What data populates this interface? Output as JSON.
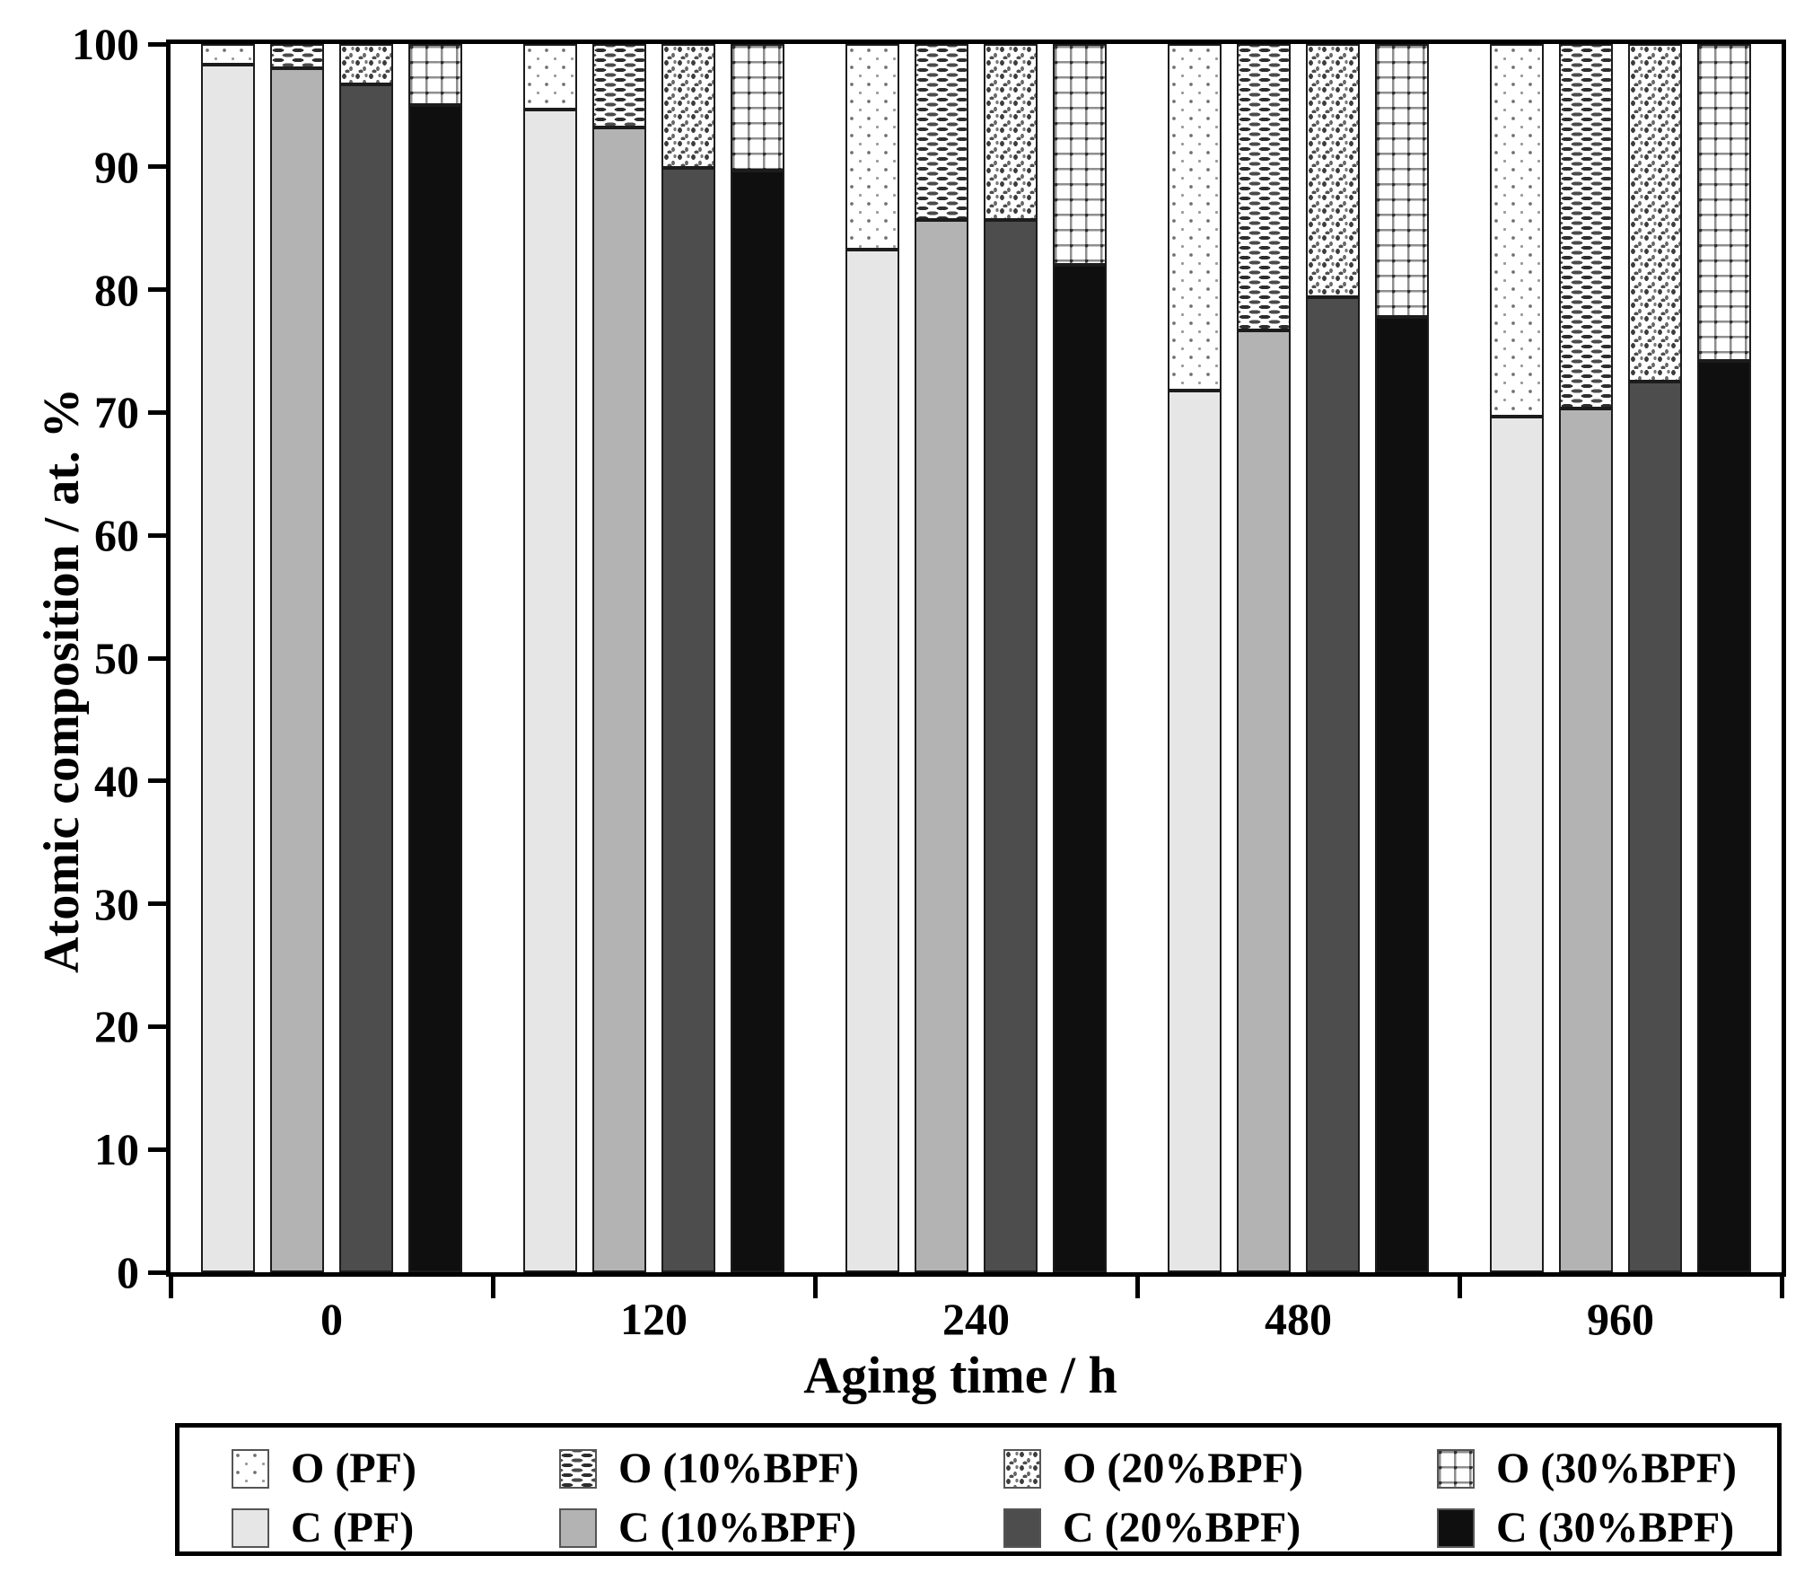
{
  "figure": {
    "background": "#ffffff",
    "axis_color": "#000000",
    "bar_border_color": "#1c1c1c"
  },
  "chart_data": {
    "type": "bar",
    "stacked": true,
    "title": "",
    "x_title": "Aging time / h",
    "y_title": "Atomic composition / at. %",
    "y_min": 0,
    "y_max": 100,
    "y_tick_step": 10,
    "y_tick_labels": [
      "0",
      "10",
      "20",
      "30",
      "40",
      "50",
      "60",
      "70",
      "80",
      "90",
      "100"
    ],
    "categories": [
      "0",
      "120",
      "240",
      "480",
      "960"
    ],
    "legend_position": "bottom",
    "grid": false,
    "series": [
      {
        "id": "pf",
        "c_label": "C (PF)",
        "o_label": "O (PF)",
        "c_color": "#e6e6e6",
        "o_pattern": "sparse-dots",
        "C": [
          98.3,
          94.7,
          83.3,
          71.8,
          69.7
        ],
        "O": [
          1.7,
          5.3,
          16.7,
          28.2,
          30.3
        ]
      },
      {
        "id": "bpf10",
        "c_label": "C (10%BPF)",
        "o_label": "O (10%BPF)",
        "c_color": "#b3b3b3",
        "o_pattern": "dashes",
        "C": [
          98.0,
          93.2,
          85.7,
          76.7,
          70.3
        ],
        "O": [
          2.0,
          6.8,
          14.3,
          23.3,
          29.7
        ]
      },
      {
        "id": "bpf20",
        "c_label": "C (20%BPF)",
        "o_label": "O (20%BPF)",
        "c_color": "#4d4d4d",
        "o_pattern": "speckle",
        "C": [
          96.7,
          89.9,
          85.7,
          79.4,
          72.5
        ],
        "O": [
          3.3,
          10.1,
          14.3,
          20.6,
          27.5
        ]
      },
      {
        "id": "bpf30",
        "c_label": "C (30%BPF)",
        "o_label": "O (30%BPF)",
        "c_color": "#0f0f0f",
        "o_pattern": "grid",
        "C": [
          95.0,
          89.7,
          82.0,
          77.8,
          74.2
        ],
        "O": [
          5.0,
          10.3,
          18.0,
          22.2,
          25.8
        ]
      }
    ]
  }
}
